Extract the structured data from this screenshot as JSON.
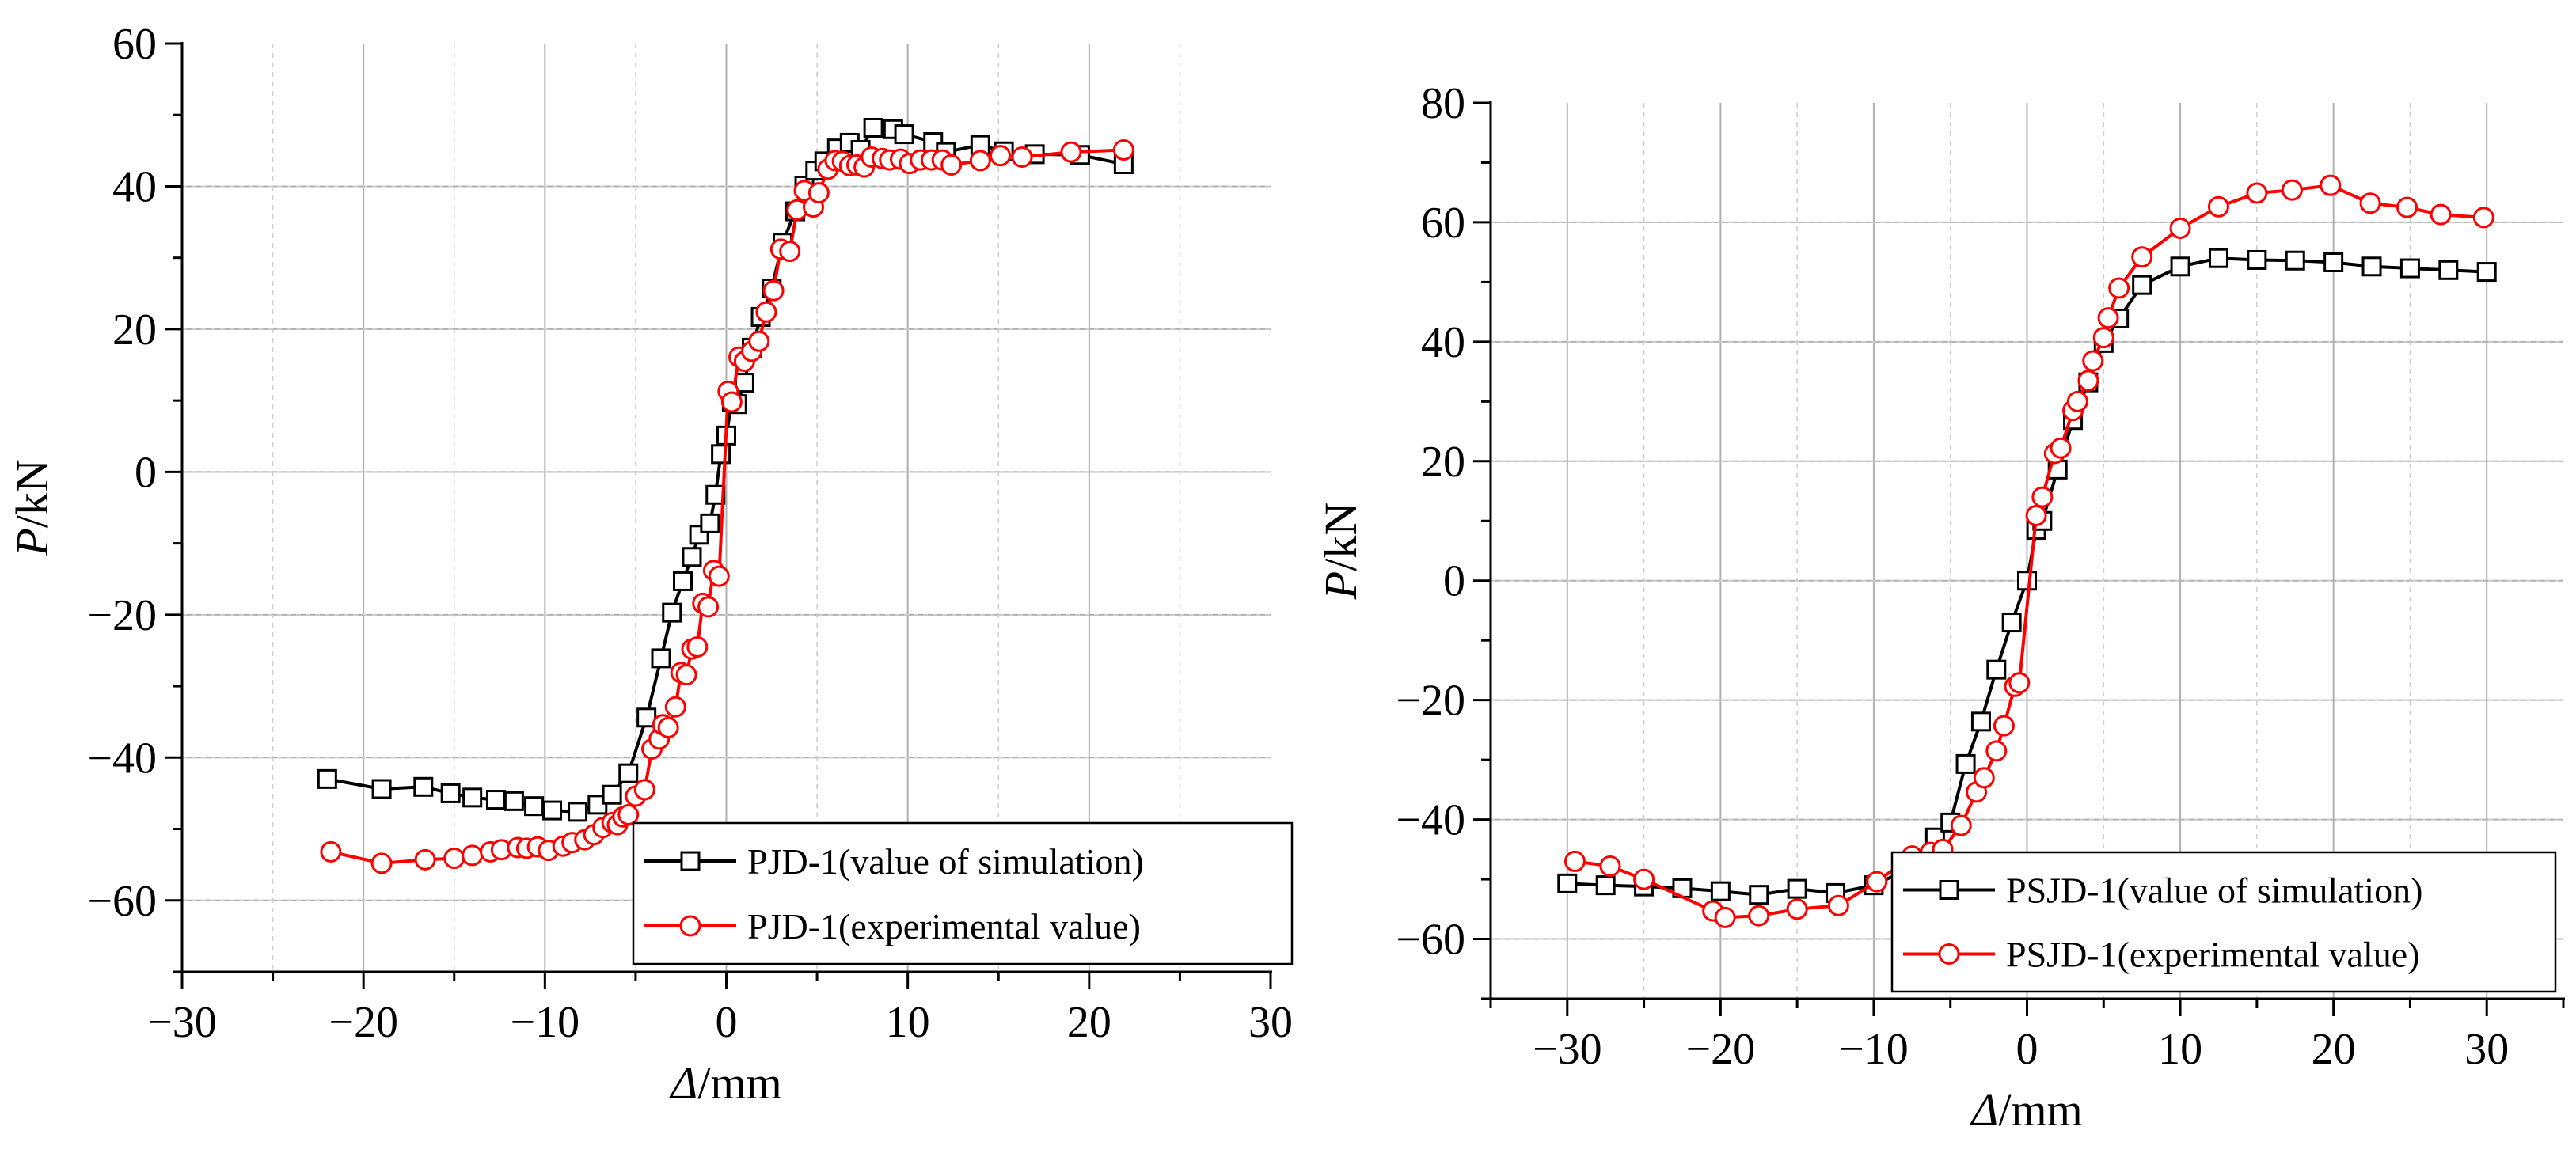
{
  "chart_data": [
    {
      "type": "line",
      "xlabel_sym": "Δ",
      "xlabel_unit": "/mm",
      "ylabel_sym": "P",
      "ylabel_unit": "/kN",
      "xlim": [
        -30,
        30
      ],
      "ylim": [
        -70,
        60
      ],
      "xticks": [
        -30,
        -20,
        -10,
        0,
        10,
        20,
        30
      ],
      "xtick_labels": [
        "−30",
        "−20",
        "−10",
        "0",
        "10",
        "20",
        "30"
      ],
      "yticks": [
        -60,
        -40,
        -20,
        0,
        20,
        40,
        60
      ],
      "ytick_labels": [
        "−60",
        "−40",
        "−20",
        "0",
        "20",
        "40",
        "60"
      ],
      "grid": true,
      "legend_position": "bottom-right",
      "series": [
        {
          "name": "PJD-1(value of simulation)",
          "color": "#000000",
          "marker": "square",
          "x": [
            -22,
            -19,
            -16.7,
            -15.2,
            -14,
            -12.7,
            -11.7,
            -10.6,
            -9.6,
            -8.2,
            -7.1,
            -6.3,
            -5.4,
            -4.4,
            -3.6,
            -3.0,
            -2.4,
            -1.9,
            -1.5,
            -0.9,
            -0.6,
            -0.3,
            0,
            0.3,
            0.6,
            1.0,
            1.4,
            1.9,
            2.5,
            3.1,
            3.8,
            4.3,
            4.9,
            5.4,
            6.1,
            6.8,
            7.4,
            8.1,
            9.2,
            9.8,
            11.4,
            12.1,
            14,
            15.3,
            17,
            19.5,
            21.9
          ],
          "y": [
            -43,
            -44.4,
            -44.1,
            -45,
            -45.6,
            -45.9,
            -46.1,
            -46.8,
            -47.4,
            -47.6,
            -46.6,
            -45.2,
            -42.2,
            -34.4,
            -26.1,
            -19.7,
            -15.3,
            -11.9,
            -8.8,
            -7.2,
            -3.2,
            2.5,
            5.1,
            9.8,
            9.5,
            12.5,
            17.4,
            21.7,
            25.7,
            32.1,
            36.5,
            40.1,
            42.2,
            43.5,
            45.3,
            46.1,
            45.1,
            48.2,
            48.0,
            47.3,
            46.2,
            44.8,
            45.8,
            44.9,
            44.5,
            44.4,
            43.1
          ]
        },
        {
          "name": "PJD-1(experimental value)",
          "color": "#ff0000",
          "marker": "circle",
          "x": [
            -21.8,
            -19.0,
            -16.6,
            -15.0,
            -14.0,
            -13.0,
            -12.4,
            -11.5,
            -11.0,
            -10.4,
            -9.8,
            -9.0,
            -8.5,
            -7.8,
            -7.3,
            -6.8,
            -6.3,
            -6.0,
            -5.7,
            -5.4,
            -5.0,
            -4.5,
            -4.1,
            -3.7,
            -3.5,
            -3.2,
            -2.8,
            -2.5,
            -2.2,
            -1.9,
            -1.6,
            -1.3,
            -1.0,
            -0.7,
            -0.4,
            0.1,
            0.3,
            0.7,
            1.0,
            1.4,
            1.8,
            2.2,
            2.6,
            3.0,
            3.5,
            3.9,
            4.3,
            4.8,
            5.1,
            5.6,
            6.0,
            6.4,
            6.8,
            7.2,
            7.6,
            8.0,
            8.6,
            9.0,
            9.6,
            10.1,
            10.7,
            11.3,
            11.9,
            12.4,
            14,
            15.1,
            16.3,
            19,
            21.9
          ],
          "y": [
            -53.2,
            -54.8,
            -54.3,
            -54.1,
            -53.7,
            -53.2,
            -52.9,
            -52.6,
            -52.7,
            -52.5,
            -53,
            -52.4,
            -51.9,
            -51.5,
            -50.8,
            -49.8,
            -49.1,
            -49.4,
            -48.3,
            -48.0,
            -45.4,
            -44.5,
            -38.8,
            -37.4,
            -35.4,
            -35.8,
            -32.9,
            -28.1,
            -28.4,
            -24.8,
            -24.5,
            -18.4,
            -18.9,
            -13.8,
            -14.6,
            11.3,
            9.8,
            16.1,
            15.5,
            16.9,
            18.3,
            22.4,
            25.4,
            31.2,
            30.9,
            36.7,
            39.4,
            37.1,
            39.1,
            42.4,
            43.6,
            43.5,
            42.9,
            43.0,
            42.7,
            44.1,
            43.9,
            43.7,
            43.8,
            43.2,
            43.7,
            43.7,
            43.7,
            43.0,
            43.6,
            44.3,
            44.1,
            44.8,
            45.1
          ]
        }
      ]
    },
    {
      "type": "line",
      "xlabel_sym": "Δ",
      "xlabel_unit": "/mm",
      "ylabel_sym": "P",
      "ylabel_unit": "/kN",
      "xlim": [
        -35,
        35
      ],
      "ylim": [
        -70,
        80
      ],
      "xticks": [
        -30,
        -20,
        -10,
        0,
        10,
        20,
        30
      ],
      "xtick_labels": [
        "−30",
        "−20",
        "−10",
        "0",
        "10",
        "20",
        "30"
      ],
      "yticks": [
        -60,
        -40,
        -20,
        0,
        20,
        40,
        60,
        80
      ],
      "ytick_labels": [
        "−60",
        "−40",
        "−20",
        "0",
        "20",
        "40",
        "60",
        "80"
      ],
      "grid": true,
      "legend_position": "bottom-right",
      "series": [
        {
          "name": "PSJD-1(value of simulation)",
          "color": "#000000",
          "marker": "square",
          "x": [
            -30,
            -27.5,
            -25,
            -22.5,
            -20,
            -17.5,
            -15,
            -12.5,
            -10,
            -7.5,
            -6,
            -5,
            -4,
            -3,
            -2,
            -1,
            0,
            0.6,
            1,
            2,
            3,
            4,
            5,
            6,
            7.5,
            10,
            12.5,
            15,
            17.5,
            20,
            22.5,
            25,
            27.5,
            30
          ],
          "y": [
            -50.7,
            -51,
            -51.2,
            -51.5,
            -52,
            -52.6,
            -51.6,
            -52.3,
            -51,
            -48,
            -43,
            -40.5,
            -30.7,
            -23.6,
            -14.9,
            -7,
            0,
            8.5,
            10,
            18.6,
            26.9,
            33.2,
            39.8,
            43.9,
            49.5,
            52.6,
            54,
            53.7,
            53.6,
            53.3,
            52.6,
            52.3,
            52,
            51.7
          ]
        },
        {
          "name": "PSJD-1(experimental value)",
          "color": "#ff0000",
          "marker": "circle",
          "x": [
            -29.5,
            -27.2,
            -25,
            -20.5,
            -19.7,
            -17.5,
            -15,
            -12.3,
            -9.8,
            -7.5,
            -6.3,
            -5.5,
            -4.3,
            -3.3,
            -2.8,
            -2.0,
            -1.5,
            -0.8,
            -0.5,
            0.6,
            1.0,
            1.8,
            2.2,
            3.0,
            3.3,
            4.0,
            4.3,
            5.0,
            5.3,
            6.0,
            7.5,
            10,
            12.5,
            15,
            17.3,
            19.8,
            22.4,
            24.8,
            27.0,
            29.8
          ],
          "y": [
            -47,
            -47.8,
            -50,
            -55.3,
            -56.4,
            -56.1,
            -55,
            -54.4,
            -50.4,
            -46.1,
            -45.5,
            -45,
            -41,
            -35.4,
            -33,
            -28.5,
            -24.3,
            -17.7,
            -17.1,
            10.9,
            14,
            21.3,
            22.2,
            28.5,
            30,
            33.5,
            36.8,
            40.7,
            44,
            49,
            54.2,
            59,
            62.6,
            64.9,
            65.4,
            66.2,
            63.2,
            62.5,
            61.3,
            60.8
          ]
        }
      ]
    }
  ]
}
